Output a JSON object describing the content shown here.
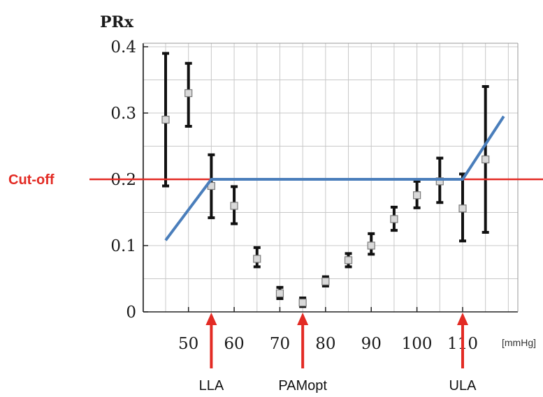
{
  "chart_data": {
    "type": "scatter",
    "title": "PRx",
    "xlabel": "[mmHg]",
    "ylabel": "PRx",
    "xlim": [
      40,
      120
    ],
    "ylim": [
      0,
      0.4
    ],
    "x_ticks": [
      "50",
      "60",
      "70",
      "80",
      "90",
      "100",
      "110"
    ],
    "y_ticks": [
      "0",
      "0.1",
      "0.2",
      "0.3",
      "0.4"
    ],
    "grid": true,
    "points": [
      {
        "x": 45,
        "y": 0.29,
        "low": 0.19,
        "high": 0.39
      },
      {
        "x": 50,
        "y": 0.33,
        "low": 0.28,
        "high": 0.375
      },
      {
        "x": 55,
        "y": 0.19,
        "low": 0.142,
        "high": 0.237
      },
      {
        "x": 60,
        "y": 0.16,
        "low": 0.133,
        "high": 0.189
      },
      {
        "x": 65,
        "y": 0.08,
        "low": 0.068,
        "high": 0.097
      },
      {
        "x": 70,
        "y": 0.028,
        "low": 0.02,
        "high": 0.037
      },
      {
        "x": 75,
        "y": 0.014,
        "low": 0.008,
        "high": 0.021
      },
      {
        "x": 80,
        "y": 0.046,
        "low": 0.039,
        "high": 0.053
      },
      {
        "x": 85,
        "y": 0.078,
        "low": 0.068,
        "high": 0.088
      },
      {
        "x": 90,
        "y": 0.1,
        "low": 0.087,
        "high": 0.118
      },
      {
        "x": 95,
        "y": 0.14,
        "low": 0.123,
        "high": 0.158
      },
      {
        "x": 100,
        "y": 0.176,
        "low": 0.157,
        "high": 0.197
      },
      {
        "x": 105,
        "y": 0.197,
        "low": 0.165,
        "high": 0.232
      },
      {
        "x": 110,
        "y": 0.156,
        "low": 0.107,
        "high": 0.208
      },
      {
        "x": 115,
        "y": 0.23,
        "low": 0.12,
        "high": 0.34
      }
    ],
    "fit_line": {
      "color": "#4a7ebb",
      "points": [
        [
          45,
          0.108
        ],
        [
          55,
          0.2
        ],
        [
          110,
          0.2
        ],
        [
          119,
          0.295
        ]
      ]
    },
    "cutoff": {
      "label": "Cut-off",
      "value": 0.2,
      "color": "#e32b24"
    },
    "markers": [
      {
        "label": "LLA",
        "x": 55
      },
      {
        "label": "PAMopt",
        "x": 75
      },
      {
        "label": "ULA",
        "x": 110
      }
    ],
    "colors": {
      "error_bar": "#111111",
      "marker_fill": "#d9d9d9",
      "marker_stroke": "#7a7a7a",
      "grid": "#c8c8c8",
      "arrow": "#e32b24"
    }
  }
}
